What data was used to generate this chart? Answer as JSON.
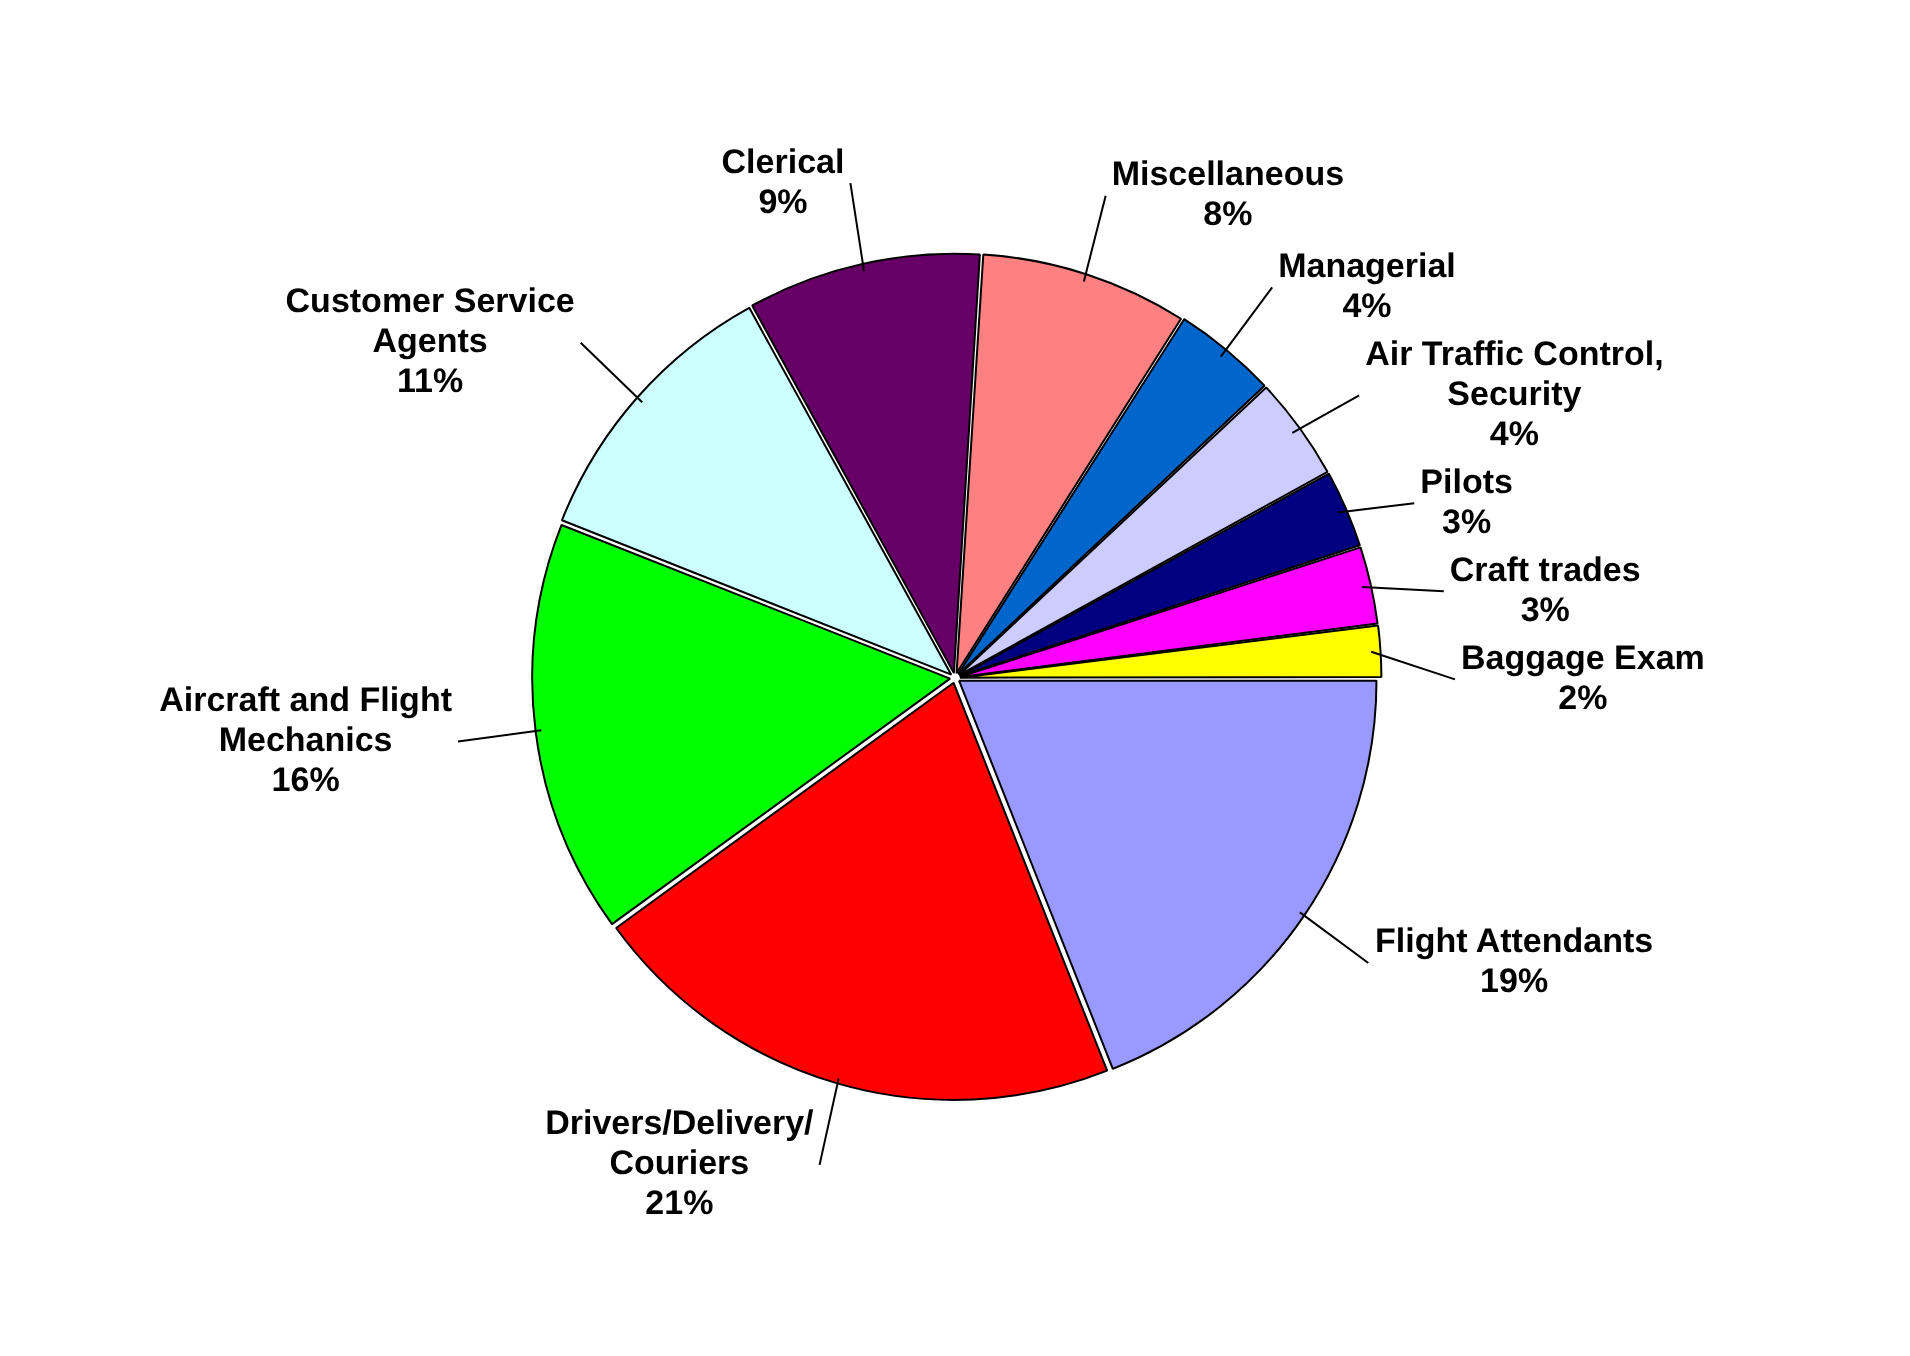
{
  "chart_data": {
    "type": "pie",
    "categories": [
      "Flight Attendants",
      "Drivers/Delivery/ Couriers",
      "Aircraft and Flight Mechanics",
      "Customer Service Agents",
      "Clerical",
      "Miscellaneous",
      "Managerial",
      "Air Traffic Control, Security",
      "Pilots",
      "Craft trades",
      "Baggage Exam"
    ],
    "values": [
      19,
      21,
      16,
      11,
      9,
      8,
      4,
      4,
      3,
      3,
      2
    ],
    "value_labels": [
      "19%",
      "21%",
      "16%",
      "11%",
      "9%",
      "8%",
      "4%",
      "4%",
      "3%",
      "3%",
      "2%"
    ],
    "colors": [
      "#9999ff",
      "#ff0000",
      "#00ff00",
      "#ccffff",
      "#660066",
      "#ff8080",
      "#0066cc",
      "#ccccff",
      "#000080",
      "#ff00ff",
      "#ffff00"
    ],
    "legend": false
  }
}
